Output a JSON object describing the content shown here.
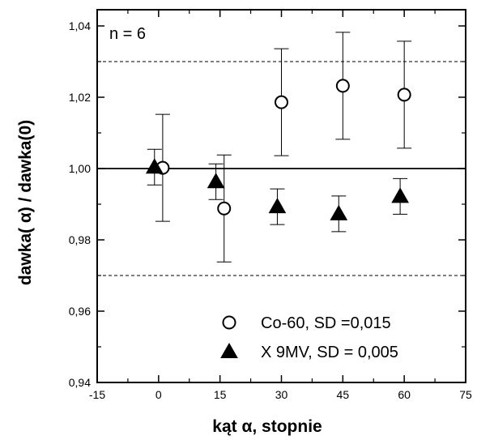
{
  "chart_data": {
    "type": "scatter",
    "annotation": "n = 6",
    "xlabel": "kąt α, stopnie",
    "ylabel": "dawka( α) / dawka(0)",
    "xlim": [
      -15,
      75
    ],
    "ylim": [
      0.94,
      1.045
    ],
    "x_ticks": [
      -15,
      0,
      15,
      30,
      45,
      60,
      75
    ],
    "x_tick_labels": [
      "-15",
      "0",
      "15",
      "30",
      "45",
      "60",
      "75"
    ],
    "y_ticks": [
      0.94,
      0.96,
      0.98,
      1.0,
      1.02,
      1.04
    ],
    "y_tick_labels": [
      "0,94",
      "0,96",
      "0,98",
      "1,00",
      "1,02",
      "1,04"
    ],
    "reference_lines": [
      {
        "y": 1.03,
        "style": "dashed"
      },
      {
        "y": 1.0,
        "style": "solid"
      },
      {
        "y": 0.97,
        "style": "dashed"
      }
    ],
    "series": [
      {
        "name": "Co-60, SD =0,015",
        "marker": "open-circle",
        "x": [
          1,
          16,
          30,
          45,
          60
        ],
        "y": [
          1.0002,
          0.9888,
          1.0186,
          1.0232,
          1.0207
        ],
        "err": [
          0.015,
          0.015,
          0.015,
          0.015,
          0.015
        ]
      },
      {
        "name": "X 9MV, SD = 0,005",
        "marker": "filled-triangle",
        "x": [
          -1,
          14,
          29,
          44,
          59
        ],
        "y": [
          1.0004,
          0.9963,
          0.9893,
          0.9873,
          0.9922
        ],
        "err": [
          0.005,
          0.005,
          0.005,
          0.005,
          0.005
        ]
      }
    ],
    "legend_position": "bottom-right",
    "grid": false
  }
}
